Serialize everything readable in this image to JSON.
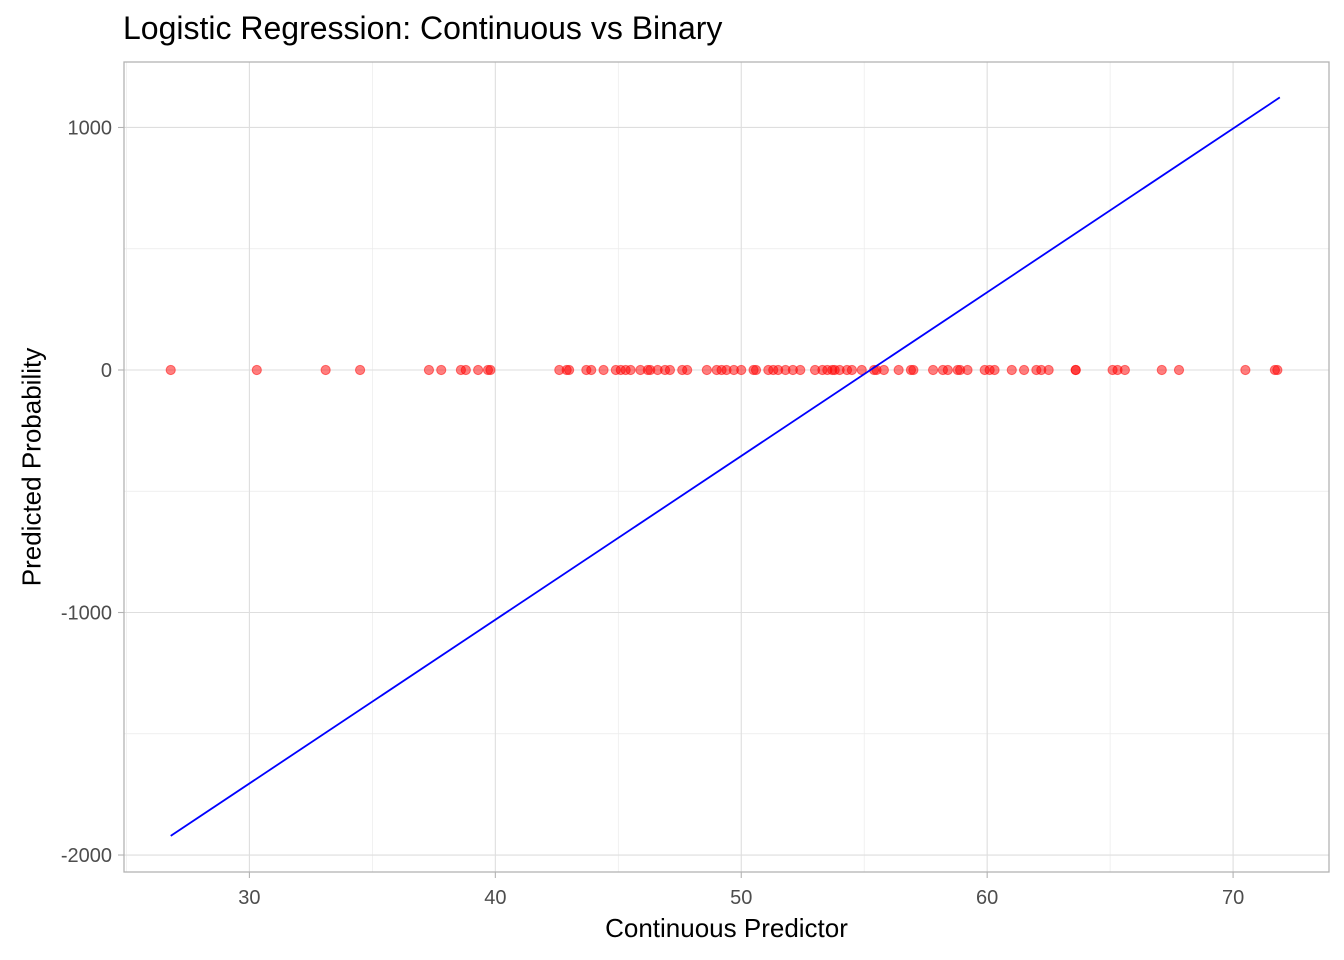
{
  "chart_data": {
    "type": "scatter",
    "title": "Logistic Regression: Continuous vs Binary",
    "xlabel": "Continuous Predictor",
    "ylabel": "Predicted Probability",
    "xlim": [
      24.9,
      73.9
    ],
    "ylim": [
      -2070,
      1270
    ],
    "x_ticks": [
      30,
      40,
      50,
      60,
      70
    ],
    "y_ticks": [
      -2000,
      -1000,
      0,
      1000
    ],
    "x_tick_labels": [
      "30",
      "40",
      "50",
      "60",
      "70"
    ],
    "y_tick_labels": [
      "-2000",
      "-1000",
      "0",
      "1000"
    ],
    "grid": true,
    "legend": null,
    "series": [
      {
        "name": "observed",
        "kind": "points",
        "color": "#ff0000",
        "opacity": 0.5,
        "x": [
          26.8,
          30.3,
          33.1,
          34.5,
          37.3,
          37.8,
          38.6,
          38.8,
          39.3,
          39.7,
          39.8,
          42.6,
          42.9,
          43.0,
          43.7,
          43.9,
          44.4,
          44.9,
          45.1,
          45.3,
          45.5,
          45.9,
          46.2,
          46.3,
          46.6,
          46.9,
          47.1,
          47.6,
          47.8,
          48.6,
          49.0,
          49.2,
          49.4,
          49.7,
          50.0,
          50.5,
          50.6,
          51.1,
          51.3,
          51.5,
          51.8,
          52.1,
          52.4,
          53.0,
          53.3,
          53.5,
          53.7,
          53.8,
          54.0,
          54.3,
          54.5,
          54.9,
          55.4,
          55.5,
          55.8,
          56.4,
          56.9,
          57.0,
          57.8,
          58.2,
          58.4,
          58.8,
          58.9,
          59.2,
          59.9,
          60.1,
          60.3,
          61.0,
          61.5,
          62.0,
          62.2,
          62.5,
          63.6,
          63.6,
          65.1,
          65.3,
          65.6,
          67.1,
          67.8,
          70.5,
          71.7,
          71.8
        ],
        "y_constant": 0
      },
      {
        "name": "fitted line",
        "kind": "line",
        "color": "#0000ff",
        "x": [
          26.8,
          71.9
        ],
        "y": [
          -1921,
          1124
        ]
      }
    ]
  }
}
